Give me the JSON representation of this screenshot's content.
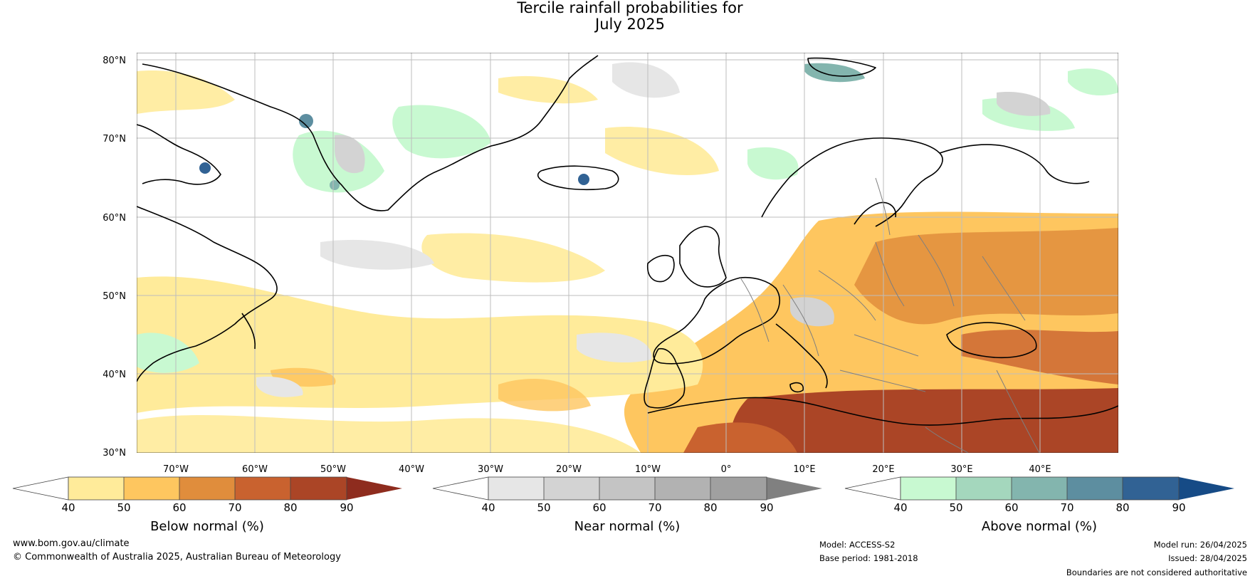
{
  "title": {
    "line1": "Tercile rainfall probabilities for",
    "line2": "July 2025"
  },
  "map": {
    "lat_labels": [
      "80°N",
      "70°N",
      "60°N",
      "50°N",
      "40°N",
      "30°N"
    ],
    "lon_labels": [
      "70°W",
      "60°W",
      "50°W",
      "40°W",
      "30°W",
      "20°W",
      "10°W",
      "0°",
      "10°E",
      "20°E",
      "30°E",
      "40°E"
    ],
    "extent": {
      "lon": [
        -85,
        40
      ],
      "lat": [
        30,
        81
      ]
    },
    "gridlines": true
  },
  "colorbars": [
    {
      "title": "Below normal (%)",
      "ticks": [
        "40",
        "50",
        "60",
        "70",
        "80",
        "90"
      ],
      "under_color": "#ffffff",
      "colors": [
        "#ffeb9a",
        "#fec65f",
        "#e08d3c",
        "#c9622f",
        "#ab4526"
      ],
      "over_color": "#8e2c1e"
    },
    {
      "title": "Near normal (%)",
      "ticks": [
        "40",
        "50",
        "60",
        "70",
        "80",
        "90"
      ],
      "under_color": "#ffffff",
      "colors": [
        "#e6e6e6",
        "#d3d3d3",
        "#c4c4c4",
        "#b2b2b2",
        "#a0a0a0"
      ],
      "over_color": "#808080"
    },
    {
      "title": "Above normal (%)",
      "ticks": [
        "40",
        "50",
        "60",
        "70",
        "80",
        "90"
      ],
      "under_color": "#ffffff",
      "colors": [
        "#c8f9d1",
        "#a4d7bd",
        "#83b5ae",
        "#5d8ea0",
        "#316294"
      ],
      "over_color": "#164b86"
    }
  ],
  "footer": {
    "url": "www.bom.gov.au/climate",
    "copyright": "© Commonwealth of Australia 2025, Australian Bureau of Meteorology",
    "model": "Model: ACCESS-S2",
    "base_period": "Base period: 1981-2018",
    "model_run": "Model run: 26/04/2025",
    "issued": "Issued: 28/04/2025",
    "disclaimer": "Boundaries are not considered authoritative"
  }
}
